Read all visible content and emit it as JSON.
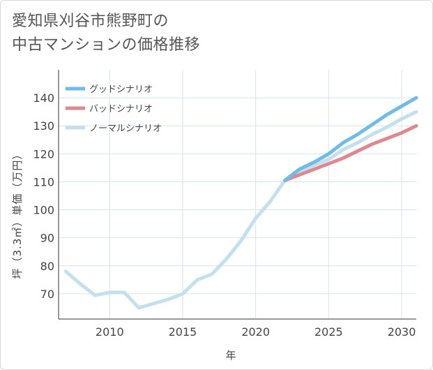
{
  "title": {
    "line1": "愛知県刈谷市熊野町の",
    "line2": "中古マンションの価格推移"
  },
  "chart_data": {
    "type": "line",
    "xlabel": "年",
    "ylabel": "坪（3.3㎡）単価（万円）",
    "xlim": [
      2006.5,
      2031
    ],
    "ylim": [
      61,
      150
    ],
    "xticks": [
      2010,
      2015,
      2020,
      2025,
      2030
    ],
    "yticks": [
      70,
      80,
      90,
      100,
      110,
      120,
      130,
      140
    ],
    "grid": true,
    "legend_position": "top-left",
    "series": [
      {
        "name": "グッドシナリオ",
        "color": "#6fbbea",
        "width": 5,
        "x": [
          2022,
          2023,
          2024,
          2025,
          2026,
          2027,
          2028,
          2029,
          2030,
          2031
        ],
        "y": [
          110.5,
          114.5,
          117,
          120,
          124,
          127,
          130.5,
          134,
          137,
          140
        ]
      },
      {
        "name": "バッドシナリオ",
        "color": "#e0888e",
        "width": 5,
        "x": [
          2022,
          2023,
          2024,
          2025,
          2026,
          2027,
          2028,
          2029,
          2030,
          2031
        ],
        "y": [
          110.5,
          112.5,
          114.5,
          116.5,
          118.5,
          121,
          123.5,
          125.5,
          127.5,
          130
        ]
      },
      {
        "name": "ノーマルシナリオ",
        "color": "#c3e0ef",
        "width": 5,
        "x": [
          2007,
          2008,
          2009,
          2010,
          2011,
          2012,
          2013,
          2014,
          2015,
          2016,
          2017,
          2018,
          2019,
          2020,
          2021,
          2022,
          2023,
          2024,
          2025,
          2026,
          2027,
          2028,
          2029,
          2030,
          2031
        ],
        "y": [
          78,
          73.5,
          69.5,
          70.5,
          70.5,
          65,
          66.5,
          68,
          70,
          75,
          77,
          82.5,
          89,
          97,
          103,
          110.5,
          113,
          116,
          118,
          121.5,
          124,
          127,
          129.5,
          132.5,
          135
        ]
      }
    ]
  }
}
